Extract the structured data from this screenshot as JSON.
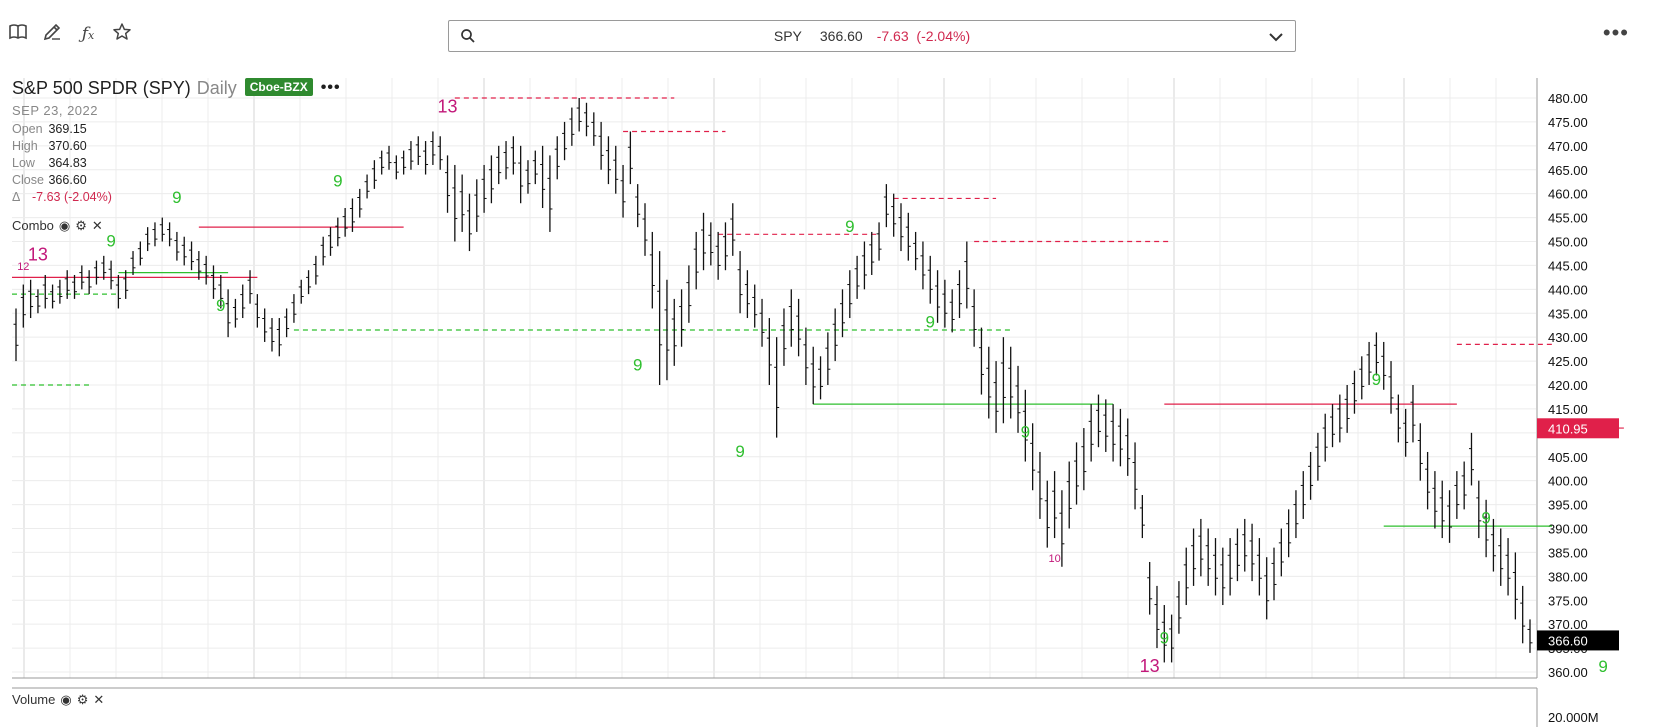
{
  "toolbar": {
    "icons": [
      "book-icon",
      "pencil-icon",
      "function-icon",
      "star-icon"
    ],
    "search": {
      "symbol": "SPY",
      "price": "366.60",
      "change": "-7.63",
      "change_pct": "(-2.04%)"
    },
    "more": "•••"
  },
  "legend": {
    "name": "S&P 500 SPDR (SPY)",
    "period": "Daily",
    "exchange": "Cboe-BZX",
    "menu": "•••",
    "date": "SEP 23, 2022",
    "open_label": "Open",
    "open": "369.15",
    "high_label": "High",
    "high": "370.60",
    "low_label": "Low",
    "low": "364.83",
    "close_label": "Close",
    "close": "366.60",
    "delta_label": "Δ",
    "delta": "-7.63 (-2.04%)"
  },
  "studies": {
    "combo_label": "Combo",
    "volume_label": "Volume"
  },
  "chart_data": {
    "type": "bar",
    "subtype": "ohlc",
    "symbol": "SPY",
    "period": "daily",
    "ylim": [
      358,
      482
    ],
    "y_ticks": [
      "480.00",
      "475.00",
      "470.00",
      "465.00",
      "460.00",
      "455.00",
      "450.00",
      "445.00",
      "440.00",
      "435.00",
      "430.00",
      "425.00",
      "420.00",
      "415.00",
      "410.00",
      "405.00",
      "400.00",
      "395.00",
      "390.00",
      "385.00",
      "380.00",
      "375.00",
      "370.00",
      "365.00",
      "360.00"
    ],
    "last_price_label": "366.60",
    "marker_price_label": "410.95",
    "volume_tick": "20.000M",
    "colors": {
      "up": "#2fbf2f",
      "down": "#c2187a",
      "level": "#e0204a",
      "bar": "#111111",
      "last": "#000000",
      "marker": "#e0204a"
    },
    "bars": [
      {
        "h": 436,
        "l": 425
      },
      {
        "h": 441,
        "l": 432
      },
      {
        "h": 442,
        "l": 434
      },
      {
        "h": 440,
        "l": 435
      },
      {
        "h": 443,
        "l": 436
      },
      {
        "h": 441,
        "l": 436
      },
      {
        "h": 442,
        "l": 437
      },
      {
        "h": 444,
        "l": 438
      },
      {
        "h": 443,
        "l": 438
      },
      {
        "h": 445,
        "l": 440
      },
      {
        "h": 444,
        "l": 439
      },
      {
        "h": 446,
        "l": 441
      },
      {
        "h": 447,
        "l": 442
      },
      {
        "h": 446,
        "l": 440
      },
      {
        "h": 443,
        "l": 436
      },
      {
        "h": 444,
        "l": 438
      },
      {
        "h": 448,
        "l": 443
      },
      {
        "h": 450,
        "l": 445
      },
      {
        "h": 453,
        "l": 448
      },
      {
        "h": 454,
        "l": 449
      },
      {
        "h": 455,
        "l": 450
      },
      {
        "h": 454,
        "l": 449
      },
      {
        "h": 452,
        "l": 446
      },
      {
        "h": 451,
        "l": 445
      },
      {
        "h": 450,
        "l": 444
      },
      {
        "h": 448,
        "l": 442
      },
      {
        "h": 447,
        "l": 441
      },
      {
        "h": 445,
        "l": 438
      },
      {
        "h": 443,
        "l": 436
      },
      {
        "h": 440,
        "l": 430
      },
      {
        "h": 438,
        "l": 432
      },
      {
        "h": 441,
        "l": 434
      },
      {
        "h": 444,
        "l": 437
      },
      {
        "h": 439,
        "l": 432
      },
      {
        "h": 436,
        "l": 429
      },
      {
        "h": 434,
        "l": 427
      },
      {
        "h": 434,
        "l": 426
      },
      {
        "h": 436,
        "l": 430
      },
      {
        "h": 439,
        "l": 433
      },
      {
        "h": 442,
        "l": 437
      },
      {
        "h": 444,
        "l": 439
      },
      {
        "h": 447,
        "l": 441
      },
      {
        "h": 451,
        "l": 445
      },
      {
        "h": 453,
        "l": 447
      },
      {
        "h": 455,
        "l": 449
      },
      {
        "h": 457,
        "l": 451
      },
      {
        "h": 459,
        "l": 452
      },
      {
        "h": 461,
        "l": 455
      },
      {
        "h": 464,
        "l": 459
      },
      {
        "h": 467,
        "l": 461
      },
      {
        "h": 469,
        "l": 464
      },
      {
        "h": 470,
        "l": 465
      },
      {
        "h": 468,
        "l": 463
      },
      {
        "h": 469,
        "l": 464
      },
      {
        "h": 471,
        "l": 465
      },
      {
        "h": 472,
        "l": 466
      },
      {
        "h": 471,
        "l": 464
      },
      {
        "h": 473,
        "l": 466
      },
      {
        "h": 472,
        "l": 465
      },
      {
        "h": 468,
        "l": 456
      },
      {
        "h": 466,
        "l": 450
      },
      {
        "h": 464,
        "l": 452
      },
      {
        "h": 460,
        "l": 448
      },
      {
        "h": 463,
        "l": 452
      },
      {
        "h": 466,
        "l": 456
      },
      {
        "h": 468,
        "l": 458
      },
      {
        "h": 470,
        "l": 462
      },
      {
        "h": 471,
        "l": 463
      },
      {
        "h": 472,
        "l": 464
      },
      {
        "h": 470,
        "l": 458
      },
      {
        "h": 467,
        "l": 460
      },
      {
        "h": 469,
        "l": 462
      },
      {
        "h": 470,
        "l": 457
      },
      {
        "h": 468,
        "l": 452
      },
      {
        "h": 472,
        "l": 463
      },
      {
        "h": 475,
        "l": 467
      },
      {
        "h": 478,
        "l": 470
      },
      {
        "h": 480,
        "l": 473
      },
      {
        "h": 479,
        "l": 472
      },
      {
        "h": 477,
        "l": 470
      },
      {
        "h": 475,
        "l": 465
      },
      {
        "h": 472,
        "l": 462
      },
      {
        "h": 470,
        "l": 460
      },
      {
        "h": 466,
        "l": 455
      },
      {
        "h": 473,
        "l": 462
      },
      {
        "h": 462,
        "l": 453
      },
      {
        "h": 458,
        "l": 447
      },
      {
        "h": 452,
        "l": 436
      },
      {
        "h": 448,
        "l": 420
      },
      {
        "h": 442,
        "l": 421
      },
      {
        "h": 438,
        "l": 424
      },
      {
        "h": 440,
        "l": 428
      },
      {
        "h": 445,
        "l": 433
      },
      {
        "h": 452,
        "l": 440
      },
      {
        "h": 456,
        "l": 444
      },
      {
        "h": 454,
        "l": 445
      },
      {
        "h": 452,
        "l": 442
      },
      {
        "h": 454,
        "l": 444
      },
      {
        "h": 458,
        "l": 447
      },
      {
        "h": 448,
        "l": 435
      },
      {
        "h": 444,
        "l": 434
      },
      {
        "h": 441,
        "l": 432
      },
      {
        "h": 438,
        "l": 428
      },
      {
        "h": 434,
        "l": 420
      },
      {
        "h": 430,
        "l": 409
      },
      {
        "h": 436,
        "l": 424
      },
      {
        "h": 440,
        "l": 428
      },
      {
        "h": 438,
        "l": 426
      },
      {
        "h": 432,
        "l": 420
      },
      {
        "h": 428,
        "l": 416
      },
      {
        "h": 426,
        "l": 417
      },
      {
        "h": 431,
        "l": 420
      },
      {
        "h": 436,
        "l": 425
      },
      {
        "h": 440,
        "l": 430
      },
      {
        "h": 444,
        "l": 434
      },
      {
        "h": 447,
        "l": 438
      },
      {
        "h": 450,
        "l": 440
      },
      {
        "h": 452,
        "l": 443
      },
      {
        "h": 454,
        "l": 446
      },
      {
        "h": 462,
        "l": 453
      },
      {
        "h": 460,
        "l": 451
      },
      {
        "h": 458,
        "l": 448
      },
      {
        "h": 456,
        "l": 446
      },
      {
        "h": 452,
        "l": 444
      },
      {
        "h": 450,
        "l": 440
      },
      {
        "h": 447,
        "l": 437
      },
      {
        "h": 444,
        "l": 433
      },
      {
        "h": 442,
        "l": 432
      },
      {
        "h": 440,
        "l": 431
      },
      {
        "h": 444,
        "l": 434
      },
      {
        "h": 450,
        "l": 436
      },
      {
        "h": 440,
        "l": 428
      },
      {
        "h": 432,
        "l": 418
      },
      {
        "h": 428,
        "l": 413
      },
      {
        "h": 425,
        "l": 410
      },
      {
        "h": 430,
        "l": 412
      },
      {
        "h": 428,
        "l": 413
      },
      {
        "h": 424,
        "l": 410
      },
      {
        "h": 419,
        "l": 404
      },
      {
        "h": 412,
        "l": 398
      },
      {
        "h": 406,
        "l": 392
      },
      {
        "h": 400,
        "l": 386
      },
      {
        "h": 402,
        "l": 388
      },
      {
        "h": 398,
        "l": 382
      },
      {
        "h": 404,
        "l": 390
      },
      {
        "h": 408,
        "l": 395
      },
      {
        "h": 411,
        "l": 398
      },
      {
        "h": 416,
        "l": 404
      },
      {
        "h": 418,
        "l": 407
      },
      {
        "h": 417,
        "l": 406
      },
      {
        "h": 416,
        "l": 404
      },
      {
        "h": 415,
        "l": 403
      },
      {
        "h": 413,
        "l": 401
      },
      {
        "h": 408,
        "l": 394
      },
      {
        "h": 397,
        "l": 388
      },
      {
        "h": 383,
        "l": 372
      },
      {
        "h": 378,
        "l": 365
      },
      {
        "h": 374,
        "l": 362
      },
      {
        "h": 372,
        "l": 362
      },
      {
        "h": 379,
        "l": 368
      },
      {
        "h": 386,
        "l": 374
      },
      {
        "h": 390,
        "l": 378
      },
      {
        "h": 392,
        "l": 380
      },
      {
        "h": 390,
        "l": 378
      },
      {
        "h": 388,
        "l": 376
      },
      {
        "h": 386,
        "l": 374
      },
      {
        "h": 388,
        "l": 376
      },
      {
        "h": 390,
        "l": 379
      },
      {
        "h": 392,
        "l": 381
      },
      {
        "h": 391,
        "l": 379
      },
      {
        "h": 388,
        "l": 376
      },
      {
        "h": 384,
        "l": 371
      },
      {
        "h": 386,
        "l": 375
      },
      {
        "h": 390,
        "l": 380
      },
      {
        "h": 394,
        "l": 384
      },
      {
        "h": 398,
        "l": 388
      },
      {
        "h": 402,
        "l": 392
      },
      {
        "h": 406,
        "l": 396
      },
      {
        "h": 410,
        "l": 400
      },
      {
        "h": 414,
        "l": 404
      },
      {
        "h": 416,
        "l": 407
      },
      {
        "h": 418,
        "l": 408
      },
      {
        "h": 420,
        "l": 410
      },
      {
        "h": 423,
        "l": 414
      },
      {
        "h": 426,
        "l": 417
      },
      {
        "h": 429,
        "l": 420
      },
      {
        "h": 431,
        "l": 422
      },
      {
        "h": 429,
        "l": 419
      },
      {
        "h": 425,
        "l": 414
      },
      {
        "h": 418,
        "l": 408
      },
      {
        "h": 415,
        "l": 405
      },
      {
        "h": 420,
        "l": 408
      },
      {
        "h": 412,
        "l": 400
      },
      {
        "h": 406,
        "l": 394
      },
      {
        "h": 402,
        "l": 390
      },
      {
        "h": 400,
        "l": 388
      },
      {
        "h": 398,
        "l": 387
      },
      {
        "h": 402,
        "l": 392
      },
      {
        "h": 404,
        "l": 394
      },
      {
        "h": 410,
        "l": 399
      },
      {
        "h": 400,
        "l": 388
      },
      {
        "h": 396,
        "l": 384
      },
      {
        "h": 392,
        "l": 381
      },
      {
        "h": 390,
        "l": 378
      },
      {
        "h": 388,
        "l": 376
      },
      {
        "h": 385,
        "l": 371
      },
      {
        "h": 378,
        "l": 366
      },
      {
        "h": 371,
        "l": 364
      }
    ],
    "levels": [
      {
        "y": 442.5,
        "x0": -1,
        "x1": 33,
        "color": "level",
        "dash": false
      },
      {
        "y": 443.5,
        "x0": 14,
        "x1": 29,
        "color": "up",
        "dash": false
      },
      {
        "y": 439,
        "x0": -1,
        "x1": 14,
        "color": "up",
        "dash": true
      },
      {
        "y": 420,
        "x0": -1,
        "x1": 10,
        "color": "up",
        "dash": true
      },
      {
        "y": 453,
        "x0": 25,
        "x1": 53,
        "color": "level",
        "dash": false
      },
      {
        "y": 431.5,
        "x0": 38,
        "x1": 136,
        "color": "up",
        "dash": true
      },
      {
        "y": 480,
        "x0": 60,
        "x1": 90,
        "color": "level",
        "dash": true
      },
      {
        "y": 473,
        "x0": 83,
        "x1": 97,
        "color": "level",
        "dash": true
      },
      {
        "y": 451.5,
        "x0": 96,
        "x1": 118,
        "color": "level",
        "dash": true
      },
      {
        "y": 416,
        "x0": 109,
        "x1": 150,
        "color": "up",
        "dash": false
      },
      {
        "y": 459,
        "x0": 120,
        "x1": 134,
        "color": "level",
        "dash": true
      },
      {
        "y": 450,
        "x0": 131,
        "x1": 158,
        "color": "level",
        "dash": true
      },
      {
        "y": 416,
        "x0": 157,
        "x1": 197,
        "color": "level",
        "dash": false
      },
      {
        "y": 390.5,
        "x0": 187,
        "x1": 210,
        "color": "up",
        "dash": false
      },
      {
        "y": 428.5,
        "x0": 197,
        "x1": 210,
        "color": "level",
        "dash": true
      },
      {
        "y": 411,
        "x0": 213,
        "x1": 220,
        "color": "level",
        "dash": true
      }
    ],
    "labels": [
      {
        "t": "13",
        "i": 3,
        "y": 446,
        "c": "down",
        "s": "big"
      },
      {
        "t": "12",
        "i": 1,
        "y": 444,
        "c": "down",
        "s": "sm"
      },
      {
        "t": "9",
        "i": 13,
        "y": 449,
        "c": "up",
        "s": "med"
      },
      {
        "t": "9",
        "i": 28,
        "y": 435.5,
        "c": "up",
        "s": "med"
      },
      {
        "t": "9",
        "i": 22,
        "y": 458,
        "c": "up",
        "s": "med"
      },
      {
        "t": "9",
        "i": 44,
        "y": 461.5,
        "c": "up",
        "s": "med"
      },
      {
        "t": "13",
        "i": 59,
        "y": 477,
        "c": "down",
        "s": "big"
      },
      {
        "t": "9",
        "i": 85,
        "y": 423,
        "c": "up",
        "s": "med"
      },
      {
        "t": "9",
        "i": 99,
        "y": 405,
        "c": "up",
        "s": "med"
      },
      {
        "t": "9",
        "i": 114,
        "y": 452,
        "c": "up",
        "s": "med"
      },
      {
        "t": "9",
        "i": 125,
        "y": 432,
        "c": "up",
        "s": "med"
      },
      {
        "t": "9",
        "i": 138,
        "y": 409,
        "c": "up",
        "s": "med"
      },
      {
        "t": "10",
        "i": 142,
        "y": 383,
        "c": "down",
        "s": "sm"
      },
      {
        "t": "13",
        "i": 155,
        "y": 360,
        "c": "down",
        "s": "big"
      },
      {
        "t": "9",
        "i": 157,
        "y": 366,
        "c": "up",
        "s": "med"
      },
      {
        "t": "9",
        "i": 186,
        "y": 420,
        "c": "up",
        "s": "med"
      },
      {
        "t": "9",
        "i": 201,
        "y": 391,
        "c": "up",
        "s": "med"
      },
      {
        "t": "9",
        "i": 217,
        "y": 360,
        "c": "up",
        "s": "med"
      }
    ]
  }
}
